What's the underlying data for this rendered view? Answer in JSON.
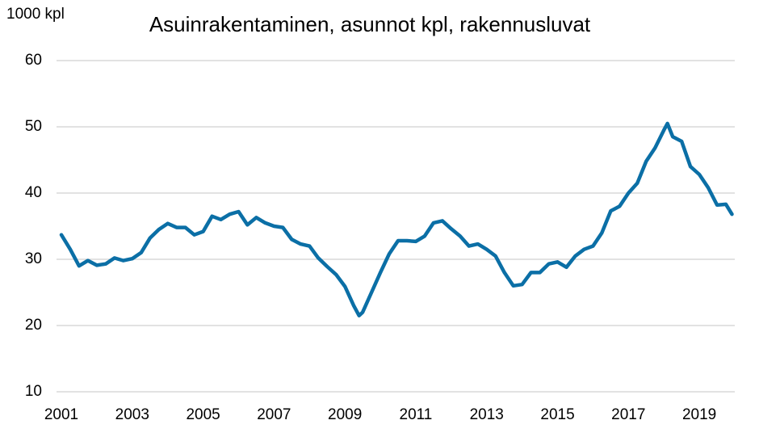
{
  "chart_data": {
    "type": "line",
    "title": "Asuinrakentaminen, asunnot kpl, rakennusluvat",
    "y_label": "1000 kpl",
    "x": [
      2001,
      2001.25,
      2001.5,
      2001.75,
      2002,
      2002.25,
      2002.5,
      2002.75,
      2003,
      2003.25,
      2003.5,
      2003.75,
      2004,
      2004.25,
      2004.5,
      2004.75,
      2005,
      2005.25,
      2005.5,
      2005.75,
      2006,
      2006.25,
      2006.5,
      2006.75,
      2007,
      2007.25,
      2007.5,
      2007.75,
      2008,
      2008.25,
      2008.5,
      2008.75,
      2009,
      2009.25,
      2009.4,
      2009.5,
      2009.75,
      2010,
      2010.25,
      2010.5,
      2010.75,
      2011,
      2011.25,
      2011.5,
      2011.75,
      2012,
      2012.25,
      2012.5,
      2012.75,
      2013,
      2013.25,
      2013.5,
      2013.75,
      2014,
      2014.25,
      2014.5,
      2014.75,
      2015,
      2015.25,
      2015.5,
      2015.75,
      2016,
      2016.25,
      2016.5,
      2016.75,
      2017,
      2017.25,
      2017.5,
      2017.75,
      2018,
      2018.1,
      2018.25,
      2018.5,
      2018.75,
      2019,
      2019.25,
      2019.5,
      2019.75,
      2019.92
    ],
    "series": [
      {
        "name": "Rakennusluvat",
        "color": "#0b6fa6",
        "values": [
          33.7,
          31.5,
          29.0,
          29.8,
          29.1,
          29.3,
          30.2,
          29.8,
          30.1,
          31.0,
          33.2,
          34.5,
          35.4,
          34.8,
          34.8,
          33.7,
          34.2,
          36.5,
          36.0,
          36.8,
          37.2,
          35.2,
          36.3,
          35.5,
          35.0,
          34.8,
          33.0,
          32.3,
          32.0,
          30.2,
          28.9,
          27.7,
          25.9,
          23.0,
          21.5,
          22.0,
          25.0,
          28.0,
          30.8,
          32.8,
          32.8,
          32.7,
          33.5,
          35.5,
          35.8,
          34.6,
          33.5,
          32.0,
          32.3,
          31.5,
          30.5,
          28.0,
          26.0,
          26.2,
          28.0,
          28.0,
          29.3,
          29.6,
          28.8,
          30.5,
          31.5,
          32.0,
          34.0,
          37.3,
          38.0,
          40.0,
          41.5,
          44.8,
          46.8,
          49.5,
          50.5,
          48.5,
          47.8,
          44.0,
          42.8,
          40.8,
          38.2,
          38.3,
          36.8
        ]
      }
    ],
    "xlim": [
      2001,
      2020
    ],
    "xticks": [
      2001,
      2003,
      2005,
      2007,
      2009,
      2011,
      2013,
      2015,
      2017,
      2019
    ],
    "ylim": [
      10,
      60
    ],
    "yticks": [
      10,
      20,
      30,
      40,
      50,
      60
    ],
    "grid": true
  }
}
